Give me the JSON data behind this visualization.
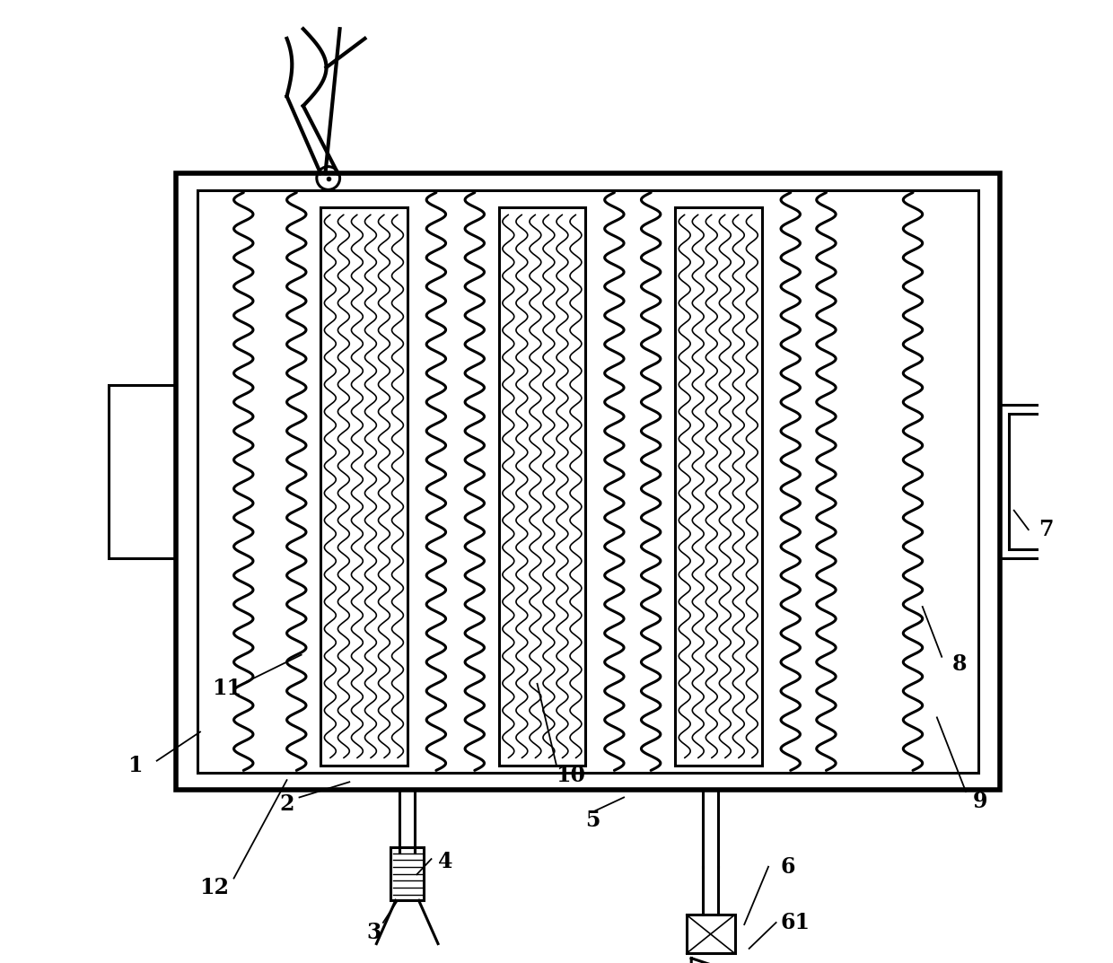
{
  "bg_color": "#ffffff",
  "line_color": "#000000",
  "lw_main": 2.2,
  "lw_thin": 1.2,
  "lw_thick": 3.0,
  "fig_width": 12.4,
  "fig_height": 10.73
}
